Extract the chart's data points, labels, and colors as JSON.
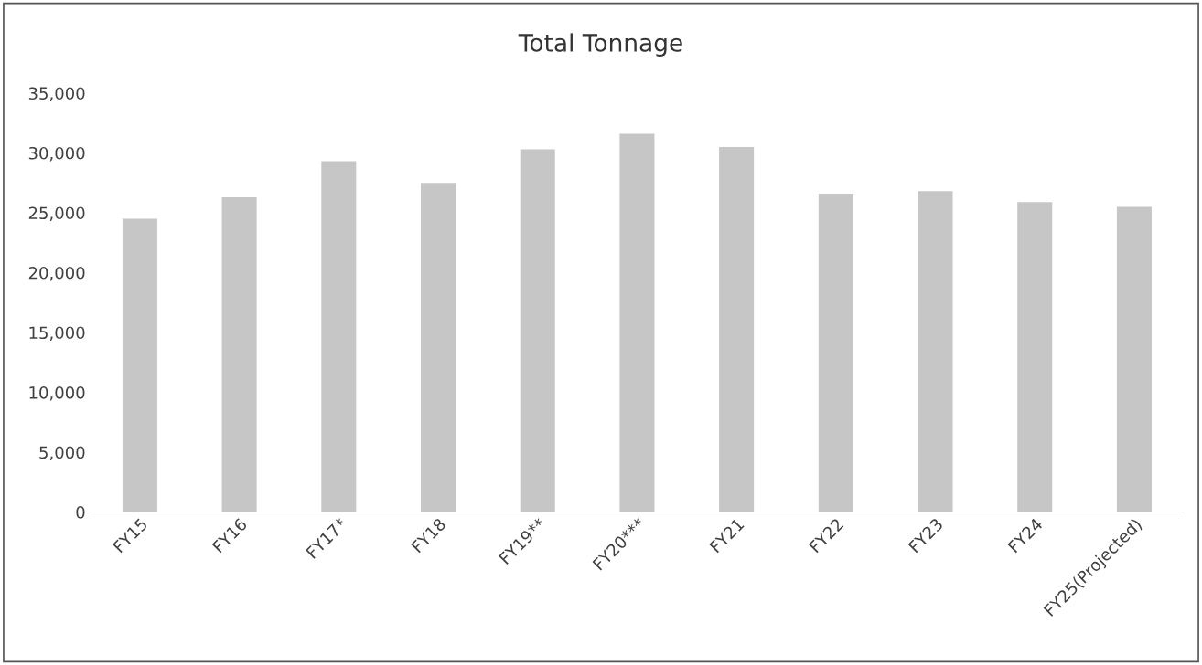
{
  "chart_data": {
    "type": "bar",
    "title": "Total Tonnage",
    "categories": [
      "FY15",
      "FY16",
      "FY17*",
      "FY18",
      "FY19**",
      "FY20***",
      "FY21",
      "FY22",
      "FY23",
      "FY24",
      "FY25(Projected)"
    ],
    "values": [
      24500,
      26300,
      29300,
      27500,
      30300,
      31600,
      30500,
      26600,
      26800,
      25900,
      25500
    ],
    "color": "#c6c6c6",
    "ylim": [
      0,
      35000
    ],
    "yticks": [
      {
        "value": 0,
        "label": "0"
      },
      {
        "value": 5000,
        "label": "5,000"
      },
      {
        "value": 10000,
        "label": "10,000"
      },
      {
        "value": 15000,
        "label": "15,000"
      },
      {
        "value": 20000,
        "label": "20,000"
      },
      {
        "value": 25000,
        "label": "25,000"
      },
      {
        "value": 30000,
        "label": "30,000"
      },
      {
        "value": 35000,
        "label": "35,000"
      }
    ],
    "grid": false
  }
}
